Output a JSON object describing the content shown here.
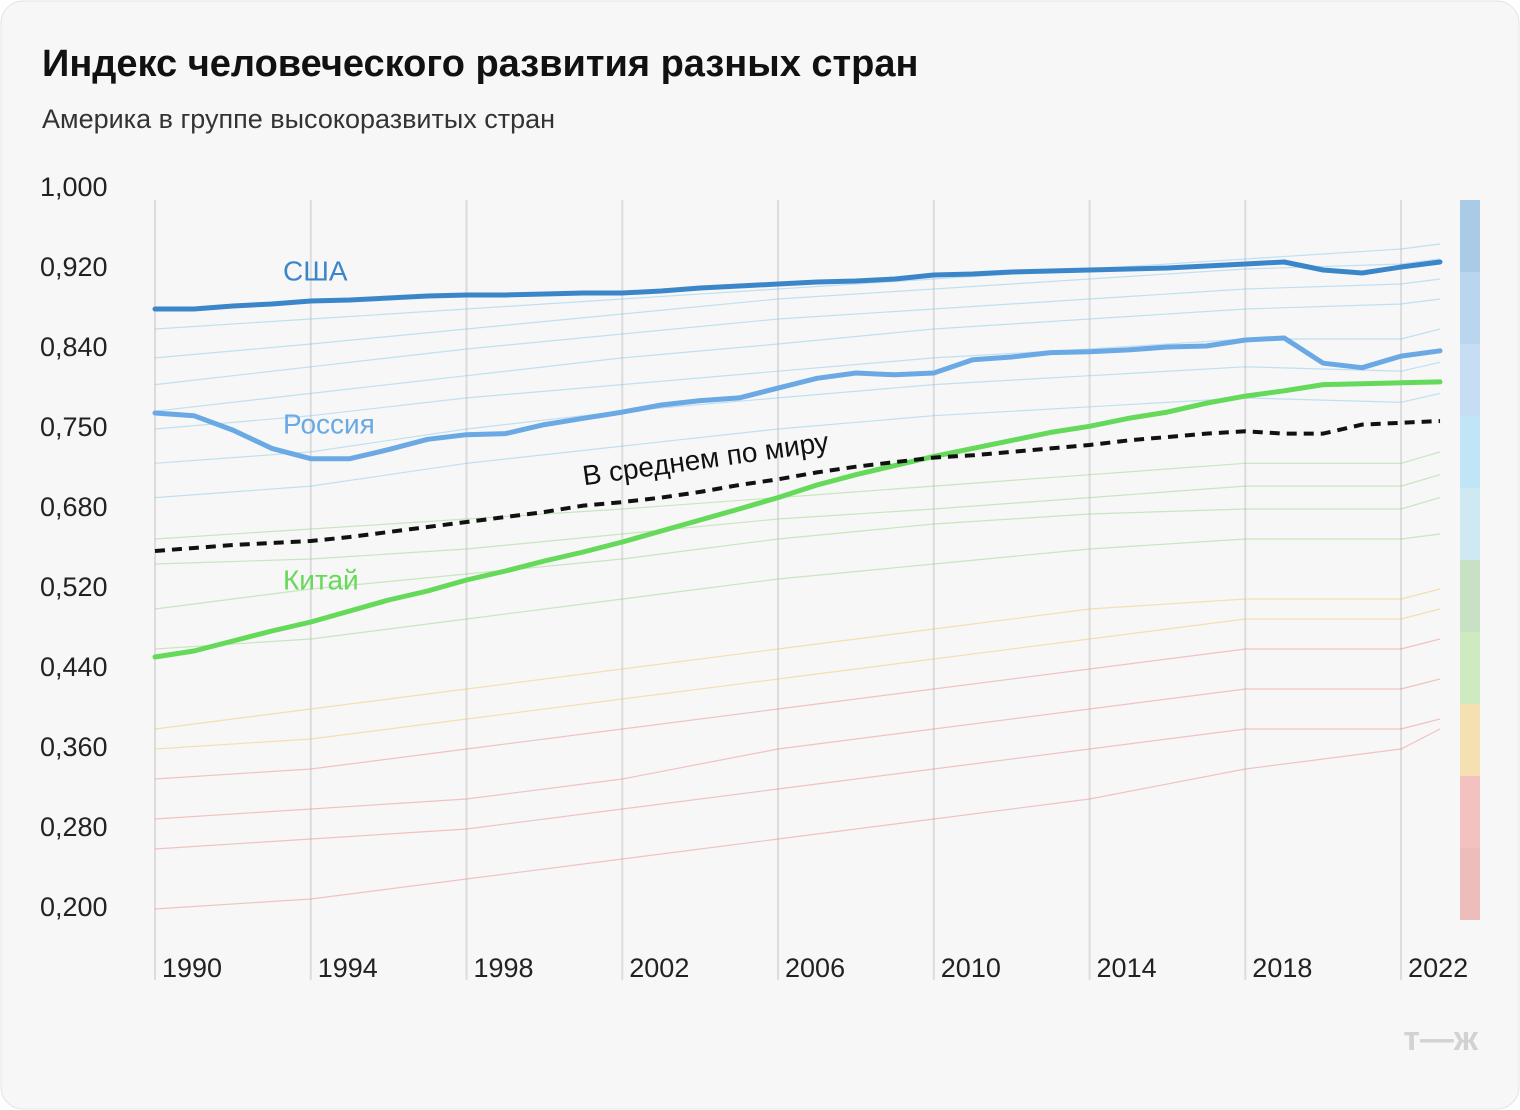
{
  "chart_data": {
    "type": "line",
    "title": "Индекс человеческого развития разных стран",
    "subtitle": "Америка в группе высокоразвитых стран",
    "logo": "т—ж",
    "x": [
      1990,
      1991,
      1992,
      1993,
      1994,
      1995,
      1996,
      1997,
      1998,
      1999,
      2000,
      2001,
      2002,
      2003,
      2004,
      2005,
      2006,
      2007,
      2008,
      2009,
      2010,
      2011,
      2012,
      2013,
      2014,
      2015,
      2016,
      2017,
      2018,
      2019,
      2020,
      2021,
      2022,
      2023
    ],
    "xlim": [
      1990,
      2023
    ],
    "xticks": [
      1990,
      1994,
      1998,
      2002,
      2006,
      2010,
      2014,
      2018,
      2022
    ],
    "ylim": [
      0.2,
      1.0
    ],
    "yticks": [
      {
        "value": 1.0,
        "label": "1,000"
      },
      {
        "value": 0.92,
        "label": "0,920"
      },
      {
        "value": 0.84,
        "label": "0,840"
      },
      {
        "value": 0.75,
        "label": "0,750"
      },
      {
        "value": 0.68,
        "label": "0,680"
      },
      {
        "value": 0.52,
        "label": "0,520"
      },
      {
        "value": 0.44,
        "label": "0,440"
      },
      {
        "value": 0.36,
        "label": "0,360"
      },
      {
        "value": 0.28,
        "label": "0,280"
      },
      {
        "value": 0.2,
        "label": "0,200"
      }
    ],
    "grid": true,
    "series": [
      {
        "name": "США",
        "color": "#3b86c8",
        "values": [
          0.88,
          0.88,
          0.883,
          0.885,
          0.888,
          0.889,
          0.891,
          0.893,
          0.894,
          0.894,
          0.895,
          0.896,
          0.896,
          0.898,
          0.901,
          0.903,
          0.905,
          0.907,
          0.908,
          0.91,
          0.914,
          0.915,
          0.917,
          0.918,
          0.919,
          0.92,
          0.921,
          0.923,
          0.925,
          0.927,
          0.919,
          0.916,
          0.922,
          0.927
        ]
      },
      {
        "name": "Россия",
        "color": "#6aa9e4",
        "values": [
          0.768,
          0.765,
          0.749,
          0.733,
          0.724,
          0.724,
          0.732,
          0.741,
          0.745,
          0.746,
          0.755,
          0.762,
          0.769,
          0.777,
          0.782,
          0.785,
          0.796,
          0.807,
          0.813,
          0.811,
          0.813,
          0.828,
          0.831,
          0.836,
          0.837,
          0.839,
          0.842,
          0.843,
          0.849,
          0.851,
          0.824,
          0.819,
          0.832,
          0.838
        ]
      },
      {
        "name": "Китай",
        "color": "#64d95a",
        "values": [
          0.452,
          0.458,
          0.468,
          0.478,
          0.487,
          0.498,
          0.509,
          0.518,
          0.538,
          0.556,
          0.576,
          0.594,
          0.614,
          0.636,
          0.658,
          0.68,
          0.69,
          0.701,
          0.71,
          0.718,
          0.726,
          0.733,
          0.74,
          0.747,
          0.753,
          0.762,
          0.769,
          0.779,
          0.787,
          0.793,
          0.8,
          0.801,
          0.802,
          0.803
        ]
      },
      {
        "name": "В среднем по миру",
        "color": "#111111",
        "dashed": true,
        "values": [
          0.596,
          0.602,
          0.608,
          0.612,
          0.616,
          0.624,
          0.634,
          0.644,
          0.654,
          0.664,
          0.674,
          0.683,
          0.686,
          0.69,
          0.695,
          0.701,
          0.706,
          0.712,
          0.717,
          0.721,
          0.725,
          0.727,
          0.73,
          0.733,
          0.736,
          0.74,
          0.743,
          0.746,
          0.748,
          0.746,
          0.746,
          0.755,
          0.757,
          0.759
        ]
      }
    ],
    "background_x": [
      1990,
      1994,
      1998,
      2002,
      2006,
      2010,
      2014,
      2018,
      2022,
      2023
    ],
    "background_series": [
      {
        "color": "#7cc3e8",
        "values": [
          0.86,
          0.87,
          0.88,
          0.89,
          0.9,
          0.91,
          0.92,
          0.93,
          0.94,
          0.945
        ]
      },
      {
        "color": "#7cc3e8",
        "values": [
          0.83,
          0.845,
          0.86,
          0.875,
          0.89,
          0.9,
          0.91,
          0.92,
          0.925,
          0.93
        ]
      },
      {
        "color": "#7cc3e8",
        "values": [
          0.8,
          0.82,
          0.84,
          0.855,
          0.87,
          0.88,
          0.89,
          0.9,
          0.905,
          0.91
        ]
      },
      {
        "color": "#7cc3e8",
        "values": [
          0.77,
          0.79,
          0.81,
          0.83,
          0.845,
          0.86,
          0.87,
          0.88,
          0.885,
          0.89
        ]
      },
      {
        "color": "#7cc3e8",
        "values": [
          0.75,
          0.765,
          0.785,
          0.8,
          0.815,
          0.83,
          0.84,
          0.85,
          0.85,
          0.86
        ]
      },
      {
        "color": "#7cc3e8",
        "values": [
          0.72,
          0.73,
          0.75,
          0.77,
          0.785,
          0.8,
          0.81,
          0.82,
          0.815,
          0.825
        ]
      },
      {
        "color": "#7cc3e8",
        "values": [
          0.69,
          0.7,
          0.72,
          0.735,
          0.75,
          0.765,
          0.775,
          0.785,
          0.78,
          0.79
        ]
      },
      {
        "color": "#8fd07a",
        "values": [
          0.62,
          0.64,
          0.66,
          0.68,
          0.69,
          0.7,
          0.71,
          0.72,
          0.72,
          0.73
        ]
      },
      {
        "color": "#8fd07a",
        "values": [
          0.57,
          0.58,
          0.6,
          0.63,
          0.66,
          0.68,
          0.69,
          0.7,
          0.7,
          0.71
        ]
      },
      {
        "color": "#8fd07a",
        "values": [
          0.5,
          0.52,
          0.55,
          0.58,
          0.62,
          0.65,
          0.67,
          0.68,
          0.68,
          0.69
        ]
      },
      {
        "color": "#8fd07a",
        "values": [
          0.46,
          0.47,
          0.49,
          0.51,
          0.54,
          0.57,
          0.6,
          0.62,
          0.62,
          0.63
        ]
      },
      {
        "color": "#f0c060",
        "values": [
          0.38,
          0.4,
          0.42,
          0.44,
          0.46,
          0.48,
          0.5,
          0.51,
          0.51,
          0.52
        ]
      },
      {
        "color": "#f0c060",
        "values": [
          0.36,
          0.37,
          0.39,
          0.41,
          0.43,
          0.45,
          0.47,
          0.49,
          0.49,
          0.5
        ]
      },
      {
        "color": "#e88080",
        "values": [
          0.33,
          0.34,
          0.36,
          0.38,
          0.4,
          0.42,
          0.44,
          0.46,
          0.46,
          0.47
        ]
      },
      {
        "color": "#e88080",
        "values": [
          0.29,
          0.3,
          0.31,
          0.33,
          0.36,
          0.38,
          0.4,
          0.42,
          0.42,
          0.43
        ]
      },
      {
        "color": "#e88080",
        "values": [
          0.26,
          0.27,
          0.28,
          0.3,
          0.32,
          0.34,
          0.36,
          0.38,
          0.38,
          0.39
        ]
      },
      {
        "color": "#e88080",
        "values": [
          0.2,
          0.21,
          0.23,
          0.25,
          0.27,
          0.29,
          0.31,
          0.34,
          0.36,
          0.38
        ]
      }
    ]
  }
}
